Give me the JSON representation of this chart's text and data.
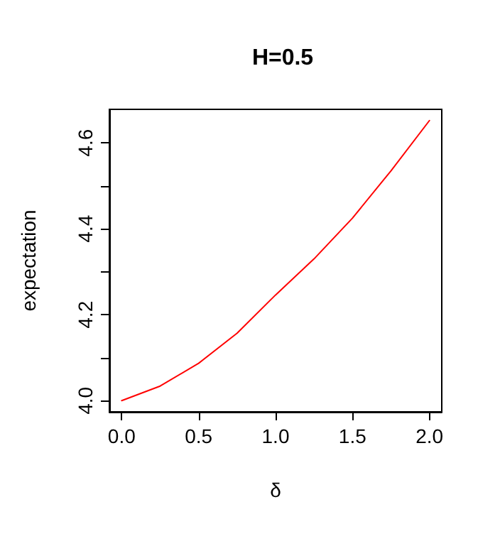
{
  "chart_data": {
    "type": "line",
    "title": "H=0.5",
    "xlabel": "δ",
    "ylabel": "expectation",
    "x": [
      0,
      0.25,
      0.5,
      0.75,
      1.0,
      1.25,
      1.5,
      1.75,
      2.0
    ],
    "series": [
      {
        "color": "#ff0000",
        "values": [
          4.0,
          4.034,
          4.087,
          4.157,
          4.246,
          4.33,
          4.425,
          4.535,
          4.652
        ]
      }
    ],
    "xlim": [
      -0.08,
      2.08
    ],
    "ylim": [
      3.974,
      4.678
    ],
    "xticks": [
      {
        "value": 0,
        "label": "0.0"
      },
      0.5,
      {
        "value": 1,
        "label": "1.0"
      },
      1.5,
      {
        "value": 2,
        "label": "2.0"
      }
    ],
    "yticks": [
      {
        "value": 4,
        "label": "4.0"
      },
      {
        "value": 4.1,
        "label": null
      },
      4.2,
      {
        "value": 4.3,
        "label": null
      },
      4.4,
      {
        "value": 4.5,
        "label": null
      },
      4.6
    ],
    "grid": false,
    "marker": "none",
    "line_style": "solid"
  }
}
